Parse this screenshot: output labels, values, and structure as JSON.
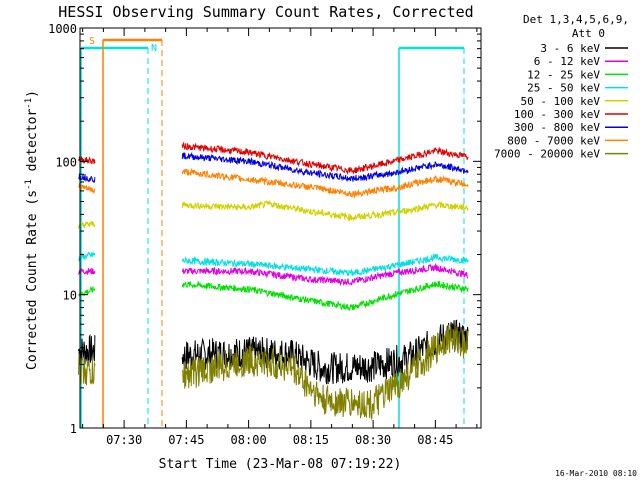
{
  "chart_data": {
    "type": "line",
    "title": "HESSI Observing Summary Count Rates, Corrected",
    "xlabel": "Start Time (23-Mar-08 07:19:22)",
    "ylabel_main": "Corrected Count Rate (s",
    "ylabel_sup1": "-1",
    "ylabel_mid": " detector",
    "ylabel_sup2": "-1",
    "ylabel_end": ")",
    "yscale": "log",
    "ylim": [
      1,
      1000
    ],
    "xlim": [
      "07:19:22",
      "08:56:00"
    ],
    "yticks": [
      "1",
      "10",
      "100",
      "1000"
    ],
    "xticks": [
      "07:30",
      "07:45",
      "08:00",
      "08:15",
      "08:30",
      "08:45"
    ],
    "footer_date": "16-Mar-2010 08:10",
    "legend": {
      "header1": "Det 1,3,4,5,6,9,",
      "header2": "Att 0",
      "placement": "right"
    },
    "series": [
      {
        "name": "3 - 6 keV",
        "color": "#000000",
        "points": [
          [
            "07:19",
            "3.8"
          ],
          [
            "07:23",
            "3.8"
          ],
          [
            "07:44",
            "3.5"
          ],
          [
            "08:00",
            "3.7"
          ],
          [
            "08:10",
            "3.6"
          ],
          [
            "08:18",
            "2.8"
          ],
          [
            "08:30",
            "2.9"
          ],
          [
            "08:38",
            "3.3"
          ],
          [
            "08:48",
            "5.0"
          ],
          [
            "08:53",
            "4.8"
          ]
        ]
      },
      {
        "name": "6 - 12 keV",
        "color": "#e000e0",
        "points": [
          [
            "07:19",
            "15"
          ],
          [
            "07:23",
            "15"
          ],
          [
            "07:44",
            "15"
          ],
          [
            "08:00",
            "15"
          ],
          [
            "08:15",
            "13"
          ],
          [
            "08:25",
            "12.5"
          ],
          [
            "08:35",
            "14.5"
          ],
          [
            "08:45",
            "16"
          ],
          [
            "08:53",
            "14"
          ]
        ]
      },
      {
        "name": "12 - 25 keV",
        "color": "#00e000",
        "points": [
          [
            "07:19",
            "10"
          ],
          [
            "07:23",
            "11"
          ],
          [
            "07:44",
            "12"
          ],
          [
            "08:00",
            "11"
          ],
          [
            "08:15",
            "9"
          ],
          [
            "08:25",
            "8"
          ],
          [
            "08:35",
            "10"
          ],
          [
            "08:45",
            "12"
          ],
          [
            "08:53",
            "11"
          ]
        ]
      },
      {
        "name": "25 - 50 keV",
        "color": "#00e0e0",
        "points": [
          [
            "07:19",
            "19"
          ],
          [
            "07:23",
            "20"
          ],
          [
            "07:44",
            "18"
          ],
          [
            "08:00",
            "17"
          ],
          [
            "08:15",
            "15.5"
          ],
          [
            "08:25",
            "14.5"
          ],
          [
            "08:35",
            "16.5"
          ],
          [
            "08:45",
            "19"
          ],
          [
            "08:53",
            "18"
          ]
        ]
      },
      {
        "name": "50 - 100 keV",
        "color": "#d0d000",
        "points": [
          [
            "07:19",
            "33"
          ],
          [
            "07:23",
            "34"
          ],
          [
            "07:44",
            "47"
          ],
          [
            "08:00",
            "45"
          ],
          [
            "08:05",
            "48"
          ],
          [
            "08:15",
            "42"
          ],
          [
            "08:25",
            "38"
          ],
          [
            "08:35",
            "41"
          ],
          [
            "08:45",
            "47"
          ],
          [
            "08:53",
            "45"
          ]
        ]
      },
      {
        "name": "100 - 300 keV",
        "color": "#e00000",
        "points": [
          [
            "07:19",
            "104"
          ],
          [
            "07:23",
            "100"
          ],
          [
            "07:44",
            "130"
          ],
          [
            "08:00",
            "117"
          ],
          [
            "08:15",
            "95"
          ],
          [
            "08:25",
            "85"
          ],
          [
            "08:35",
            "100"
          ],
          [
            "08:45",
            "120"
          ],
          [
            "08:53",
            "108"
          ]
        ]
      },
      {
        "name": "300 - 800 keV",
        "color": "#0000e0",
        "points": [
          [
            "07:19",
            "78"
          ],
          [
            "07:23",
            "73"
          ],
          [
            "07:44",
            "110"
          ],
          [
            "08:00",
            "100"
          ],
          [
            "08:15",
            "82"
          ],
          [
            "08:25",
            "74"
          ],
          [
            "08:35",
            "82"
          ],
          [
            "08:45",
            "95"
          ],
          [
            "08:53",
            "85"
          ]
        ]
      },
      {
        "name": "800 - 7000 keV",
        "color": "#ff8000",
        "points": [
          [
            "07:19",
            "65"
          ],
          [
            "07:23",
            "60"
          ],
          [
            "07:44",
            "84"
          ],
          [
            "08:00",
            "73"
          ],
          [
            "08:15",
            "64"
          ],
          [
            "08:25",
            "57"
          ],
          [
            "08:35",
            "63"
          ],
          [
            "08:45",
            "74"
          ],
          [
            "08:53",
            "67"
          ]
        ]
      },
      {
        "name": "7000 - 20000 keV",
        "color": "#808000",
        "points": [
          [
            "07:19",
            "2.8"
          ],
          [
            "07:23",
            "2.5"
          ],
          [
            "07:44",
            "2.5"
          ],
          [
            "08:00",
            "3.2"
          ],
          [
            "08:10",
            "2.9"
          ],
          [
            "08:18",
            "1.6"
          ],
          [
            "08:30",
            "1.5"
          ],
          [
            "08:38",
            "2.4"
          ],
          [
            "08:48",
            "4.8"
          ],
          [
            "08:53",
            "4.2"
          ]
        ]
      }
    ],
    "annotations": {
      "S_label": "S",
      "N_label": "N",
      "S_color": "#ff8000",
      "N_color": "#00e0e0"
    }
  }
}
